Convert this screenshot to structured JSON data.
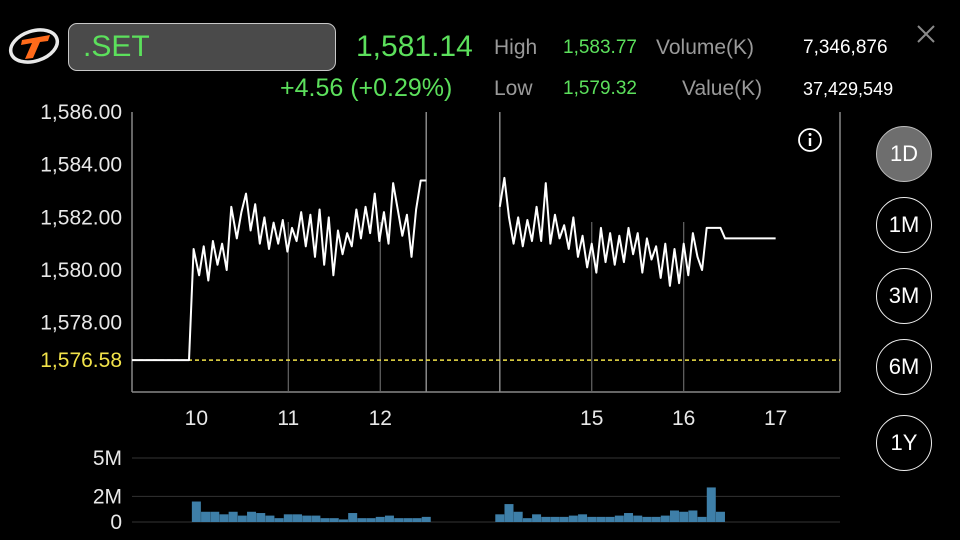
{
  "header": {
    "symbol": ".SET",
    "last_price": "1,581.14",
    "change": "+4.56 (+0.29%)",
    "high_label": "High",
    "high_value": "1,583.77",
    "low_label": "Low",
    "low_value": "1,579.32",
    "volume_label": "Volume(K)",
    "volume_value": "7,346,876",
    "value_label": "Value(K)",
    "value_value": "37,429,549"
  },
  "icons": {
    "logo": "brand-logo-icon",
    "info": "info-icon",
    "close": "close-icon"
  },
  "colors": {
    "up": "#5ce05c",
    "line": "#ffffff",
    "baseline": "#f2e34a",
    "volume": "#3e7fa8"
  },
  "range_buttons": [
    {
      "label": "1D",
      "active": true
    },
    {
      "label": "1M",
      "active": false
    },
    {
      "label": "3M",
      "active": false
    },
    {
      "label": "6M",
      "active": false
    },
    {
      "label": "1Y",
      "active": false
    }
  ],
  "chart_data": [
    {
      "type": "line",
      "ylim": [
        1575.9,
        1586.0
      ],
      "yticks": [
        "1,586.00",
        "1,584.00",
        "1,582.00",
        "1,580.00",
        "1,578.00"
      ],
      "ytick_values": [
        1586,
        1584,
        1582,
        1580,
        1578
      ],
      "xlim": [
        9.3,
        17.0
      ],
      "xticks": [
        "10",
        "11",
        "12",
        "15",
        "16",
        "17"
      ],
      "xtick_values": [
        10,
        11,
        12,
        14.3,
        15.3,
        16.3
      ],
      "break_after": 12.5,
      "break_gap": [
        12.5,
        13.3
      ],
      "baseline": {
        "value": 1576.58,
        "label": "1,576.58"
      },
      "grid": true,
      "series": [
        {
          "x": [
            9.3,
            9.92,
            9.97,
            10.03,
            10.08,
            10.13,
            10.18,
            10.23,
            10.28,
            10.33,
            10.38,
            10.44,
            10.49,
            10.54,
            10.59,
            10.64,
            10.69,
            10.74,
            10.79,
            10.84,
            10.89,
            10.94,
            10.99,
            11.04,
            11.09,
            11.14,
            11.19,
            11.24,
            11.29,
            11.34,
            11.39,
            11.44,
            11.49,
            11.54,
            11.59,
            11.64,
            11.69,
            11.74,
            11.79,
            11.84,
            11.89,
            11.94,
            11.99,
            12.04,
            12.09,
            12.14,
            12.19,
            12.24,
            12.29,
            12.34,
            12.39,
            12.44,
            12.5,
            13.3,
            13.35,
            13.4,
            13.45,
            13.5,
            13.55,
            13.6,
            13.65,
            13.7,
            13.75,
            13.8,
            13.85,
            13.9,
            13.95,
            14.0,
            14.05,
            14.1,
            14.15,
            14.2,
            14.25,
            14.3,
            14.35,
            14.4,
            14.45,
            14.5,
            14.55,
            14.6,
            14.65,
            14.7,
            14.75,
            14.8,
            14.85,
            14.9,
            14.95,
            15.0,
            15.05,
            15.1,
            15.15,
            15.2,
            15.25,
            15.3,
            15.35,
            15.4,
            15.45,
            15.5,
            15.55,
            15.6,
            15.65,
            15.7,
            15.75,
            15.8,
            15.85,
            15.9,
            16.0,
            16.3
          ],
          "y": [
            1576.58,
            1576.58,
            1580.8,
            1579.8,
            1580.9,
            1579.6,
            1581.1,
            1580.2,
            1581.0,
            1580.0,
            1582.4,
            1581.2,
            1582.2,
            1582.9,
            1581.5,
            1582.5,
            1581.0,
            1582.0,
            1580.8,
            1581.8,
            1581.0,
            1581.9,
            1580.7,
            1581.6,
            1581.1,
            1582.2,
            1580.9,
            1582.1,
            1580.5,
            1582.3,
            1580.2,
            1582.0,
            1579.8,
            1581.5,
            1580.6,
            1581.4,
            1580.9,
            1582.3,
            1581.2,
            1582.4,
            1581.4,
            1582.9,
            1581.1,
            1582.2,
            1581.0,
            1583.3,
            1582.3,
            1581.3,
            1582.1,
            1580.5,
            1582.3,
            1583.4,
            1583.4,
            1582.4,
            1583.5,
            1582.0,
            1581.0,
            1582.0,
            1580.9,
            1581.9,
            1581.1,
            1582.4,
            1581.1,
            1583.3,
            1581.0,
            1582.1,
            1581.2,
            1581.7,
            1580.8,
            1582.0,
            1580.5,
            1581.3,
            1580.1,
            1581.0,
            1579.9,
            1581.6,
            1580.3,
            1581.4,
            1580.2,
            1581.3,
            1580.3,
            1581.6,
            1580.6,
            1581.4,
            1579.9,
            1581.2,
            1580.4,
            1580.9,
            1579.7,
            1581.0,
            1579.4,
            1580.8,
            1579.5,
            1581.0,
            1579.8,
            1581.4,
            1580.5,
            1580.0,
            1581.6,
            1581.6,
            1581.6,
            1581.6,
            1581.2,
            1581.2,
            1581.2,
            1581.2,
            1581.2,
            1581.2
          ]
        }
      ]
    },
    {
      "type": "bar",
      "ylim": [
        0,
        5
      ],
      "yticks": [
        "5M",
        "2M",
        "0"
      ],
      "ytick_values": [
        5,
        2,
        0
      ],
      "grid": true,
      "x": [
        10.0,
        10.1,
        10.2,
        10.3,
        10.4,
        10.5,
        10.6,
        10.7,
        10.8,
        10.9,
        11.0,
        11.1,
        11.2,
        11.3,
        11.4,
        11.5,
        11.6,
        11.7,
        11.8,
        11.9,
        12.0,
        12.1,
        12.2,
        12.3,
        12.4,
        12.5,
        13.3,
        13.4,
        13.5,
        13.6,
        13.7,
        13.8,
        13.9,
        14.0,
        14.1,
        14.2,
        14.3,
        14.4,
        14.5,
        14.6,
        14.7,
        14.8,
        14.9,
        15.0,
        15.1,
        15.2,
        15.3,
        15.4,
        15.5,
        15.6,
        15.7,
        15.8
      ],
      "values": [
        1.6,
        0.8,
        0.8,
        0.6,
        0.8,
        0.5,
        0.8,
        0.7,
        0.5,
        0.3,
        0.6,
        0.6,
        0.5,
        0.5,
        0.3,
        0.3,
        0.2,
        0.7,
        0.3,
        0.3,
        0.4,
        0.5,
        0.3,
        0.3,
        0.3,
        0.4,
        0.6,
        1.4,
        0.8,
        0.3,
        0.6,
        0.4,
        0.4,
        0.4,
        0.5,
        0.6,
        0.4,
        0.4,
        0.4,
        0.5,
        0.7,
        0.5,
        0.4,
        0.4,
        0.5,
        0.9,
        0.8,
        0.9,
        0.4,
        2.7,
        0.8,
        0.0
      ]
    }
  ]
}
